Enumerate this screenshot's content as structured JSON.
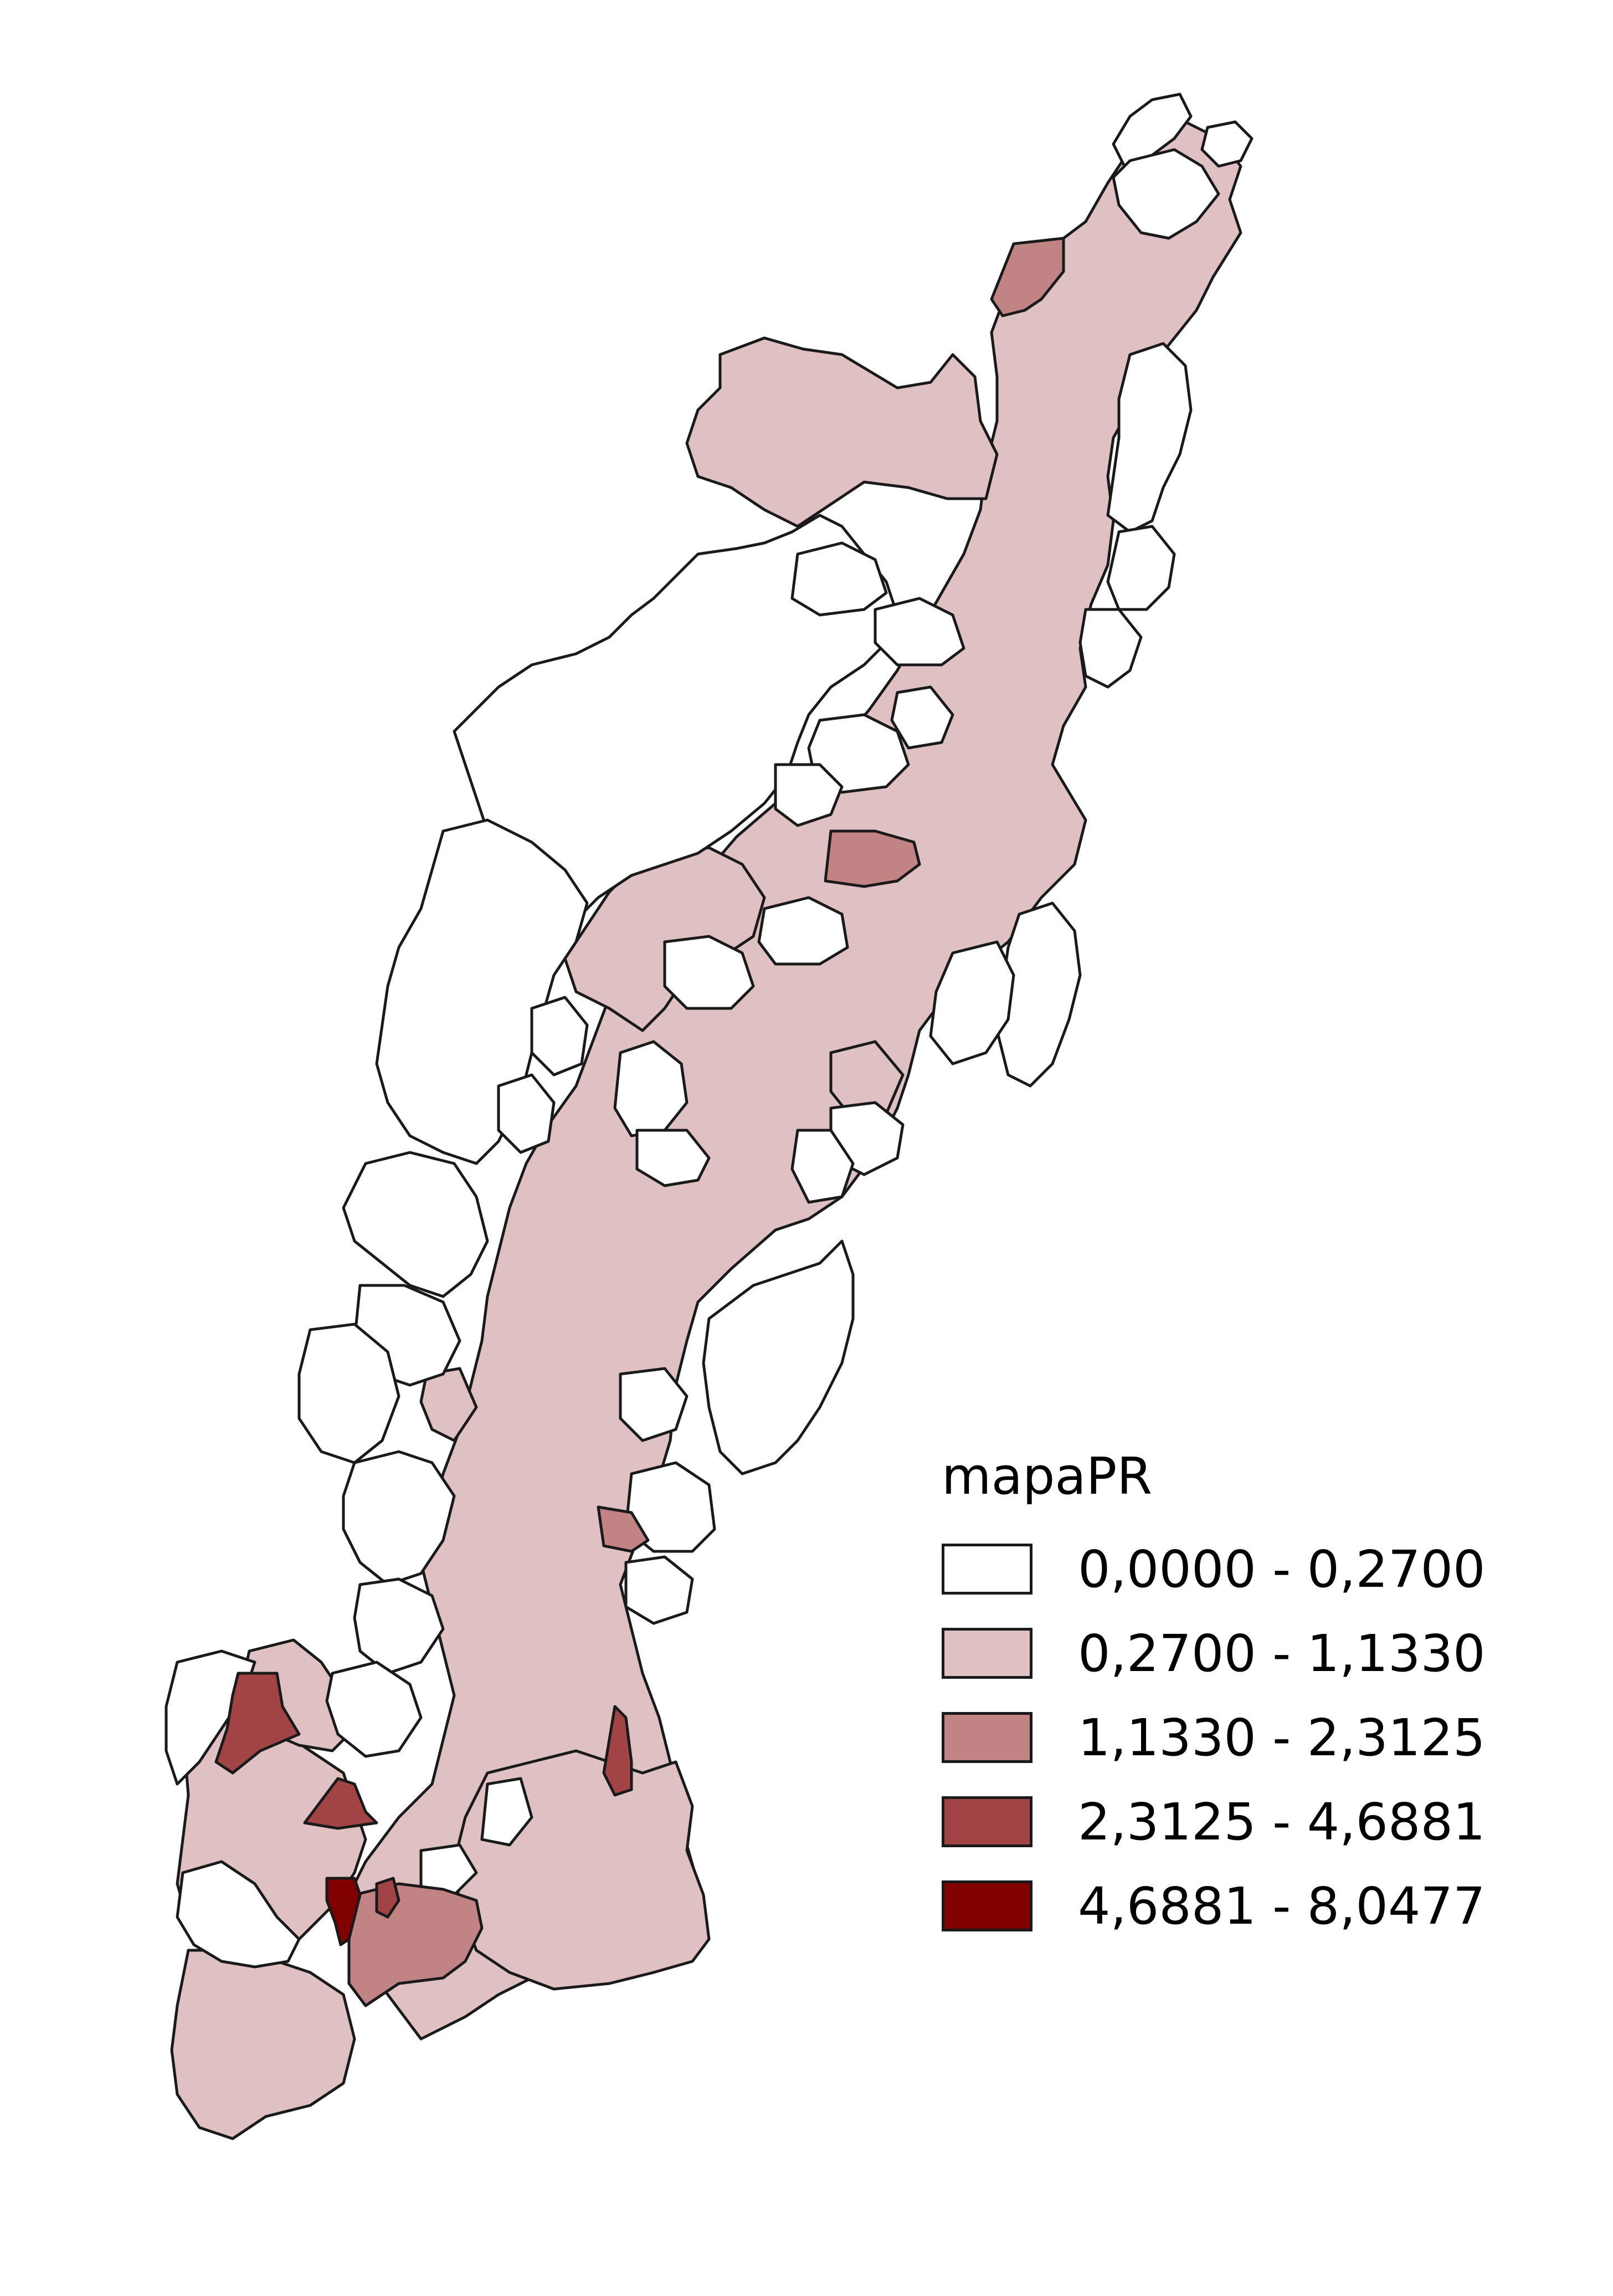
{
  "legend": {
    "title": "mapaPR",
    "classes": [
      {
        "label": "0,0000 - 0,2700",
        "min": 0.0,
        "max": 0.27,
        "color": "#ffffff"
      },
      {
        "label": "0,2700 - 1,1330",
        "min": 0.27,
        "max": 1.133,
        "color": "#dfc1c3"
      },
      {
        "label": "1,1330 - 2,3125",
        "min": 1.133,
        "max": 2.3125,
        "color": "#c28384"
      },
      {
        "label": "2,3125 - 4,6881",
        "min": 2.3125,
        "max": 4.6881,
        "color": "#a24346"
      },
      {
        "label": "4,6881 - 8,0477",
        "min": 4.6881,
        "max": 8.0477,
        "color": "#800000"
      }
    ]
  }
}
